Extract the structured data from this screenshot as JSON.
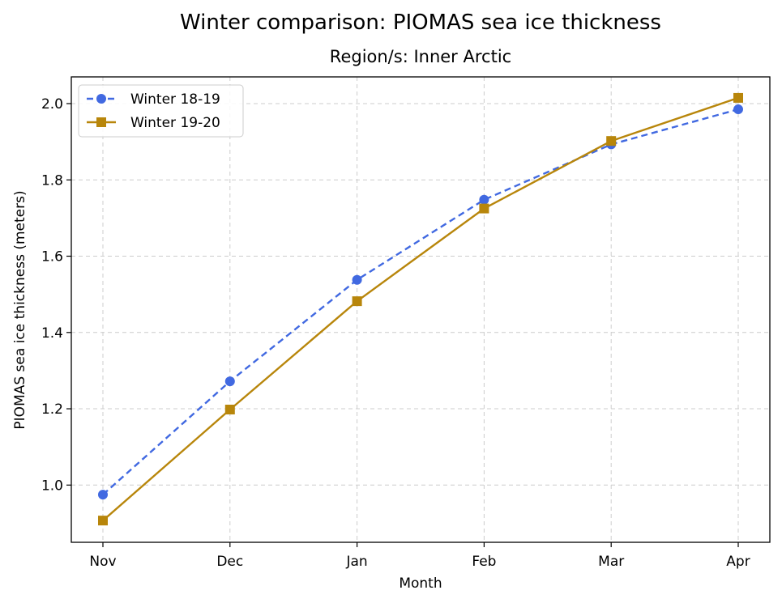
{
  "chart_data": {
    "type": "line",
    "title": "Winter comparison: PIOMAS sea ice thickness",
    "subtitle": "Region/s: Inner Arctic",
    "xlabel": "Month",
    "ylabel": "PIOMAS sea ice thickness (meters)",
    "categories": [
      "Nov",
      "Dec",
      "Jan",
      "Feb",
      "Mar",
      "Apr"
    ],
    "ylim": [
      0.85,
      2.07
    ],
    "yticks": [
      1.0,
      1.2,
      1.4,
      1.6,
      1.8,
      2.0
    ],
    "ytick_labels": [
      "1.0",
      "1.2",
      "1.4",
      "1.6",
      "1.8",
      "2.0"
    ],
    "grid": true,
    "legend_position": "top-left",
    "series": [
      {
        "name": "Winter 18-19",
        "values": [
          0.975,
          1.272,
          1.538,
          1.748,
          1.893,
          1.985
        ],
        "color": "#4169e1",
        "dash": "dashed",
        "marker": "circle"
      },
      {
        "name": "Winter 19-20",
        "values": [
          0.907,
          1.198,
          1.482,
          1.725,
          1.902,
          2.015
        ],
        "color": "#b8860b",
        "dash": "solid",
        "marker": "square"
      }
    ]
  }
}
